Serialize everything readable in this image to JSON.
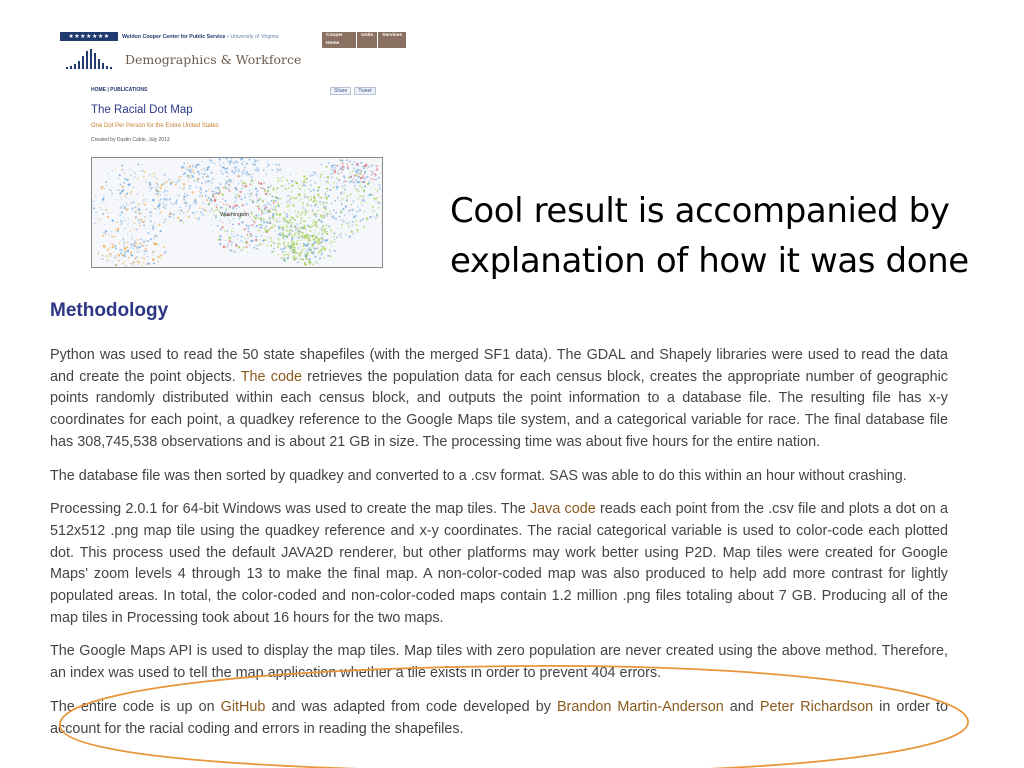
{
  "site": {
    "center_stars": "★★★★★★★",
    "center_name": "Weldon Cooper Center for Public Service",
    "university": "University of Virginia",
    "nav": [
      "Cooper Home",
      "Units",
      "Services"
    ],
    "section_title": "Demographics & Workforce",
    "breadcrumb": "HOME | PUBLICATIONS",
    "share_facebook": "Share",
    "share_twitter": "Tweet",
    "page_title": "The Racial Dot Map",
    "page_subtitle": "One Dot Per Person for the Entire United States",
    "credit": "Created by Dustin Cable, July 2013",
    "map_city_label": "Washington"
  },
  "caption": {
    "line1": "Cool result is accompanied by",
    "line2": "explanation of how it was done"
  },
  "methodology": {
    "heading": "Methodology",
    "p1": {
      "a": "Python was used to read the 50 state shapefiles (with the merged SF1 data). The GDAL and Shapely libraries were used to read the data and create the point objects. ",
      "link": "The code",
      "b": " retrieves the population data for each census block, creates the appropriate number of geographic points randomly distributed within each census block, and outputs the point information to a database file. The resulting file has x-y coordinates for each point, a quadkey reference to the Google Maps tile system, and a categorical variable for race. The final database file has 308,745,538 observations and is about 21 GB in size. The processing time was about five hours for the entire nation."
    },
    "p2": "The database file was then sorted by quadkey and converted to a .csv format. SAS was able to do this within an hour without crashing.",
    "p3": {
      "a": "Processing 2.0.1 for 64-bit Windows was used to create the map tiles. The ",
      "link": "Java code",
      "b": " reads each point from the .csv file and plots a dot on a 512x512 .png map tile using the quadkey reference and x-y coordinates. The racial categorical variable is used to color-code each plotted dot. This process used the default JAVA2D renderer, but other platforms may work better using P2D. Map tiles were created for Google Maps' zoom levels 4 through 13 to make the final map. A non-color-coded map was also produced to help add more contrast for lightly populated areas. In total, the color-coded and non-color-coded maps contain 1.2 million .png files totaling about 7 GB. Producing all of the map tiles in Processing took about 16 hours for the two maps."
    },
    "p4": "The Google Maps API is used to display the map tiles. Map tiles with zero population are never created using the above method. Therefore, an index was used to tell the map application whether a tile exists in order to prevent 404 errors.",
    "p5": {
      "a": "The entire code is up on ",
      "link1": "GitHub",
      "b": " and was adapted from code developed by ",
      "link2": "Brandon Martin-Anderson",
      "c": " and ",
      "link3": "Peter Richardson",
      "d": " in order to account for the racial coding and errors in reading the shapefiles."
    }
  },
  "colors": {
    "heading": "#2d3585",
    "link": "#8a5a1c",
    "highlight": "#e8963a",
    "dot_white": "#6fa8dc",
    "dot_black": "#9bcb3b",
    "dot_asian": "#e05a5a",
    "dot_hispanic": "#f0a030"
  }
}
